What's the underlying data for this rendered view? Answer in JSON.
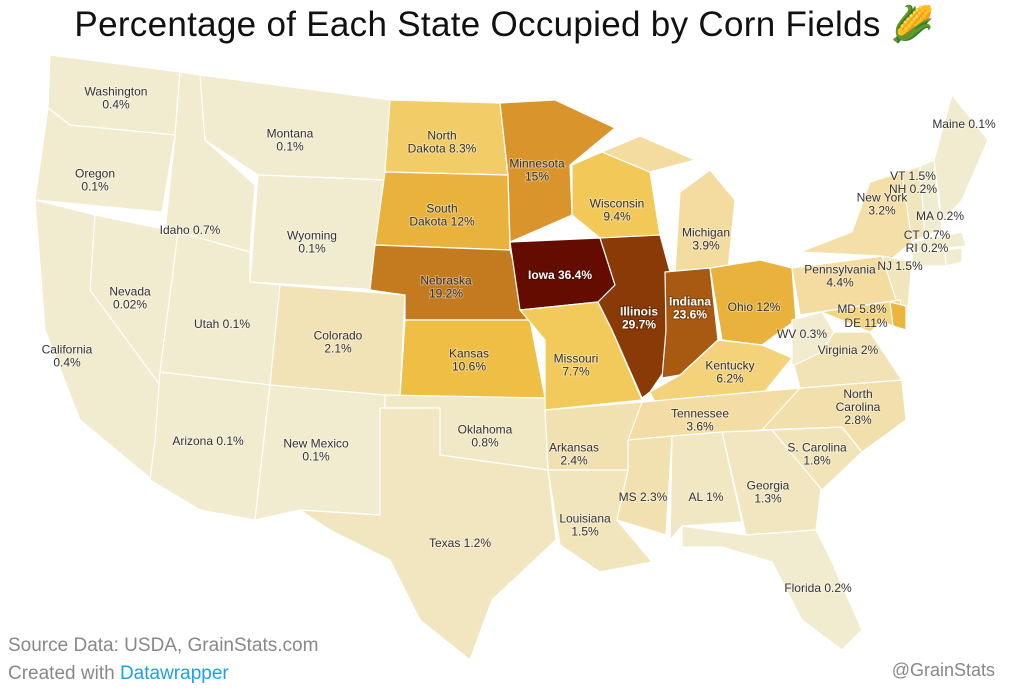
{
  "title": "Percentage of Each State Occupied by Corn Fields",
  "title_icon": "corn-emoji",
  "footer": {
    "source": "Source Data: USDA, GrainStats.com",
    "created_prefix": "Created with",
    "created_link": "Datawrapper",
    "handle": "@GrainStats"
  },
  "colors": {
    "link": "#1da1e0",
    "low": "#f1ebcf",
    "high": "#650c00"
  },
  "states": [
    {
      "id": "WA",
      "label": [
        "Washington",
        "0.4%"
      ],
      "value": 0.4,
      "color": "#f1ebcf"
    },
    {
      "id": "OR",
      "label": [
        "Oregon",
        "0.1%"
      ],
      "value": 0.1,
      "color": "#f1ebcf"
    },
    {
      "id": "CA",
      "label": [
        "California",
        "0.4%"
      ],
      "value": 0.4,
      "color": "#f1ebcf"
    },
    {
      "id": "NV",
      "label": [
        "Nevada",
        "0.02%"
      ],
      "value": 0.02,
      "color": "#f1ebcf"
    },
    {
      "id": "ID",
      "label": [
        "Idaho 0.7%"
      ],
      "value": 0.7,
      "color": "#f1ebcf"
    },
    {
      "id": "MT",
      "label": [
        "Montana",
        "0.1%"
      ],
      "value": 0.1,
      "color": "#f1ebcf"
    },
    {
      "id": "WY",
      "label": [
        "Wyoming",
        "0.1%"
      ],
      "value": 0.1,
      "color": "#f1ebcf"
    },
    {
      "id": "UT",
      "label": [
        "Utah 0.1%"
      ],
      "value": 0.1,
      "color": "#f1ebcf"
    },
    {
      "id": "AZ",
      "label": [
        "Arizona 0.1%"
      ],
      "value": 0.1,
      "color": "#f1ebcf"
    },
    {
      "id": "CO",
      "label": [
        "Colorado",
        "2.1%"
      ],
      "value": 2.1,
      "color": "#f2e3b6"
    },
    {
      "id": "NM",
      "label": [
        "New Mexico",
        "0.1%"
      ],
      "value": 0.1,
      "color": "#f1ebcf"
    },
    {
      "id": "ND",
      "label": [
        "North",
        "Dakota 8.3%"
      ],
      "value": 8.3,
      "color": "#f2cc66"
    },
    {
      "id": "SD",
      "label": [
        "South",
        "Dakota 12%"
      ],
      "value": 12,
      "color": "#e8b23c"
    },
    {
      "id": "NE",
      "label": [
        "Nebraska",
        "19.2%"
      ],
      "value": 19.2,
      "color": "#c47a1e"
    },
    {
      "id": "KS",
      "label": [
        "Kansas",
        "10.6%"
      ],
      "value": 10.6,
      "color": "#efbe44"
    },
    {
      "id": "OK",
      "label": [
        "Oklahoma",
        "0.8%"
      ],
      "value": 0.8,
      "color": "#f1e8c6"
    },
    {
      "id": "TX",
      "label": [
        "Texas 1.2%"
      ],
      "value": 1.2,
      "color": "#f1e6c0"
    },
    {
      "id": "MN",
      "label": [
        "Minnesota",
        "15%"
      ],
      "value": 15,
      "color": "#d9952b"
    },
    {
      "id": "IA",
      "label": [
        "Iowa 36.4%"
      ],
      "value": 36.4,
      "color": "#650c00"
    },
    {
      "id": "MO",
      "label": [
        "Missouri",
        "7.7%"
      ],
      "value": 7.7,
      "color": "#f2ca5c"
    },
    {
      "id": "AR",
      "label": [
        "Arkansas",
        "2.4%"
      ],
      "value": 2.4,
      "color": "#f2e1b0"
    },
    {
      "id": "LA",
      "label": [
        "Louisiana",
        "1.5%"
      ],
      "value": 1.5,
      "color": "#f1e5bc"
    },
    {
      "id": "WI",
      "label": [
        "Wisconsin",
        "9.4%"
      ],
      "value": 9.4,
      "color": "#f2c858"
    },
    {
      "id": "IL",
      "label": [
        "Illinois",
        "29.7%"
      ],
      "value": 29.7,
      "color": "#8a3a06"
    },
    {
      "id": "MI",
      "label": [
        "Michigan",
        "3.9%"
      ],
      "value": 3.9,
      "color": "#f4dca0"
    },
    {
      "id": "IN",
      "label": [
        "Indiana",
        "23.6%"
      ],
      "value": 23.6,
      "color": "#a85912"
    },
    {
      "id": "OH",
      "label": [
        "Ohio 12%"
      ],
      "value": 12,
      "color": "#e8b23c"
    },
    {
      "id": "KY",
      "label": [
        "Kentucky",
        "6.2%"
      ],
      "value": 6.2,
      "color": "#f3d27a"
    },
    {
      "id": "TN",
      "label": [
        "Tennessee",
        "3.6%"
      ],
      "value": 3.6,
      "color": "#f4dda4"
    },
    {
      "id": "MS",
      "label": [
        "MS 2.3%"
      ],
      "value": 2.3,
      "color": "#f2e1b0"
    },
    {
      "id": "AL",
      "label": [
        "AL 1%"
      ],
      "value": 1,
      "color": "#f1e7c2"
    },
    {
      "id": "GA",
      "label": [
        "Georgia",
        "1.3%"
      ],
      "value": 1.3,
      "color": "#f1e6bf"
    },
    {
      "id": "FL",
      "label": [
        "Florida 0.2%"
      ],
      "value": 0.2,
      "color": "#f1ebcf"
    },
    {
      "id": "SC",
      "label": [
        "S. Carolina",
        "1.8%"
      ],
      "value": 1.8,
      "color": "#f1e4b9"
    },
    {
      "id": "NC",
      "label": [
        "North",
        "Carolina",
        "2.8%"
      ],
      "value": 2.8,
      "color": "#f2e0ac"
    },
    {
      "id": "VA",
      "label": [
        "Virginia 2%"
      ],
      "value": 2,
      "color": "#f2e3b6"
    },
    {
      "id": "WV",
      "label": [
        "WV 0.3%"
      ],
      "value": 0.3,
      "color": "#f1ebcf"
    },
    {
      "id": "PA",
      "label": [
        "Pennsylvania",
        "4.4%"
      ],
      "value": 4.4,
      "color": "#f4dba0"
    },
    {
      "id": "NY",
      "label": [
        "New York",
        "3.2%"
      ],
      "value": 3.2,
      "color": "#f4dfa8"
    },
    {
      "id": "NJ",
      "label": [
        "NJ 1.5%"
      ],
      "value": 1.5,
      "color": "#f1e5bc"
    },
    {
      "id": "MD",
      "label": [
        "MD 5.8%"
      ],
      "value": 5.8,
      "color": "#f3d47e"
    },
    {
      "id": "DE",
      "label": [
        "DE 11%"
      ],
      "value": 11,
      "color": "#ebb53e"
    },
    {
      "id": "VT",
      "label": [
        "VT 1.5%"
      ],
      "value": 1.5,
      "color": "#f1e5bc"
    },
    {
      "id": "NH",
      "label": [
        "NH 0.2%"
      ],
      "value": 0.2,
      "color": "#f1ebcf"
    },
    {
      "id": "MA",
      "label": [
        "MA 0.2%"
      ],
      "value": 0.2,
      "color": "#f1ebcf"
    },
    {
      "id": "CT",
      "label": [
        "CT 0.7%"
      ],
      "value": 0.7,
      "color": "#f1ebcf"
    },
    {
      "id": "RI",
      "label": [
        "RI 0.2%"
      ],
      "value": 0.2,
      "color": "#f1ebcf"
    },
    {
      "id": "ME",
      "label": [
        "Maine 0.1%"
      ],
      "value": 0.1,
      "color": "#f1ebcf"
    }
  ]
}
